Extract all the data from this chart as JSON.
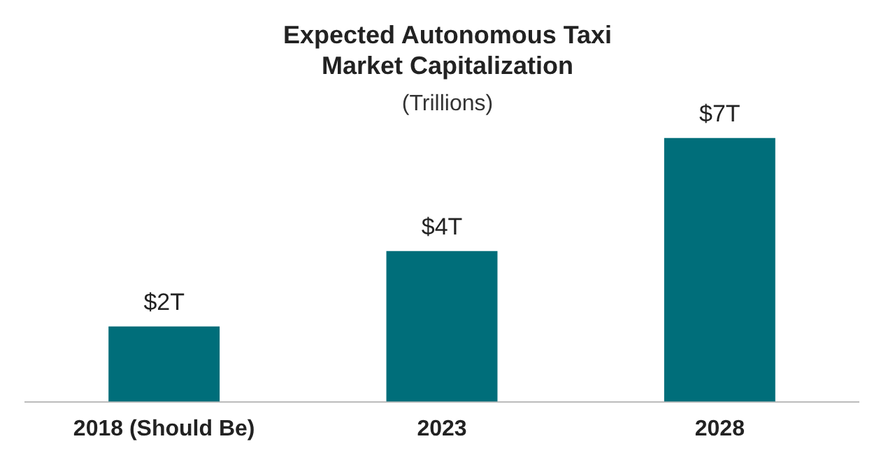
{
  "chart_data": {
    "type": "bar",
    "title": "Expected Autonomous Taxi Market Capitalization",
    "subtitle": "(Trillions)",
    "categories": [
      "2018 (Should Be)",
      "2023",
      "2028"
    ],
    "values": [
      2,
      4,
      7
    ],
    "value_labels": [
      "$2T",
      "$4T",
      "$7T"
    ],
    "color": "#006e7a",
    "tick_labels": "x",
    "grid": false,
    "legend": false
  }
}
